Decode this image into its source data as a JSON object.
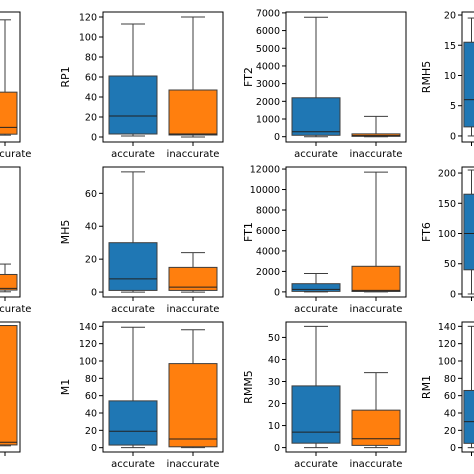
{
  "colors": {
    "accurate": "#1f77b4",
    "inaccurate": "#ff7f0e",
    "axis": "#000000",
    "median": "#222222"
  },
  "chart_data": [
    {
      "type": "box",
      "ylabel": "",
      "ylim": [
        -5,
        128
      ],
      "yticks": [],
      "categories": [
        "",
        "inaccurate"
      ],
      "boxes": [
        null,
        {
          "q1": 3,
          "median": 10,
          "q3": 46,
          "whisker_low": 2,
          "whisker_high": 120
        }
      ]
    },
    {
      "type": "box",
      "ylabel": "RP1",
      "ylim": [
        -5,
        125
      ],
      "yticks": [
        0,
        20,
        40,
        60,
        80,
        100,
        120
      ],
      "categories": [
        "accurate",
        "inaccurate"
      ],
      "boxes": [
        {
          "q1": 3,
          "median": 21,
          "q3": 61,
          "whisker_low": 1,
          "whisker_high": 113
        },
        {
          "q1": 2,
          "median": 3,
          "q3": 47,
          "whisker_low": 0,
          "whisker_high": 120
        }
      ]
    },
    {
      "type": "box",
      "ylabel": "FT2",
      "ylim": [
        -300,
        7050
      ],
      "yticks": [
        0,
        1000,
        2000,
        3000,
        4000,
        5000,
        6000,
        7000
      ],
      "categories": [
        "accurate",
        "inaccurate"
      ],
      "boxes": [
        {
          "q1": 80,
          "median": 280,
          "q3": 2200,
          "whisker_low": 0,
          "whisker_high": 6750
        },
        {
          "q1": 20,
          "median": 60,
          "q3": 160,
          "whisker_low": 0,
          "whisker_high": 1150
        }
      ]
    },
    {
      "type": "box",
      "ylabel": "RMH5",
      "ylim": [
        -1,
        20.5
      ],
      "yticks": [
        0,
        5,
        10,
        15,
        20
      ],
      "categories": [
        "",
        ""
      ],
      "boxes": [
        {
          "q1": 1.5,
          "median": 6,
          "q3": 15.5,
          "whisker_low": 0,
          "whisker_high": 19.5
        },
        null
      ]
    },
    {
      "type": "box",
      "ylabel": "",
      "ylim": [
        -3,
        72
      ],
      "yticks": [],
      "categories": [
        "",
        "inaccurate"
      ],
      "boxes": [
        null,
        {
          "q1": 1,
          "median": 2,
          "q3": 10,
          "whisker_low": 0,
          "whisker_high": 16
        }
      ]
    },
    {
      "type": "box",
      "ylabel": "MH5",
      "ylim": [
        -3,
        76
      ],
      "yticks": [
        0,
        20,
        40,
        60
      ],
      "categories": [
        "accurate",
        "inaccurate"
      ],
      "boxes": [
        {
          "q1": 1,
          "median": 8,
          "q3": 30,
          "whisker_low": 0,
          "whisker_high": 73
        },
        {
          "q1": 1,
          "median": 3,
          "q3": 15,
          "whisker_low": 0,
          "whisker_high": 24
        }
      ]
    },
    {
      "type": "box",
      "ylabel": "FT1",
      "ylim": [
        -500,
        12200
      ],
      "yticks": [
        0,
        2000,
        4000,
        6000,
        8000,
        10000,
        12000
      ],
      "categories": [
        "accurate",
        "inaccurate"
      ],
      "boxes": [
        {
          "q1": 50,
          "median": 250,
          "q3": 800,
          "whisker_low": 0,
          "whisker_high": 1800
        },
        {
          "q1": 40,
          "median": 150,
          "q3": 2500,
          "whisker_low": 0,
          "whisker_high": 11700
        }
      ]
    },
    {
      "type": "box",
      "ylabel": "FT6",
      "ylim": [
        -5,
        210
      ],
      "yticks": [
        0,
        50,
        100,
        150,
        200
      ],
      "categories": [
        "",
        ""
      ],
      "boxes": [
        {
          "q1": 40,
          "median": 100,
          "q3": 165,
          "whisker_low": 0,
          "whisker_high": 205
        },
        null
      ]
    },
    {
      "type": "box",
      "ylabel": "",
      "ylim": [
        -5,
        142
      ],
      "yticks": [],
      "categories": [
        "",
        ""
      ],
      "boxes": [
        null,
        {
          "q1": 3,
          "median": 6,
          "q3": 138,
          "whisker_low": 2,
          "whisker_high": 138
        }
      ]
    },
    {
      "type": "box",
      "ylabel": "M1",
      "ylim": [
        -5,
        145
      ],
      "yticks": [
        0,
        20,
        40,
        60,
        80,
        100,
        120,
        140
      ],
      "categories": [
        "accurate",
        "inaccurate"
      ],
      "boxes": [
        {
          "q1": 3,
          "median": 19,
          "q3": 54,
          "whisker_low": 0,
          "whisker_high": 139
        },
        {
          "q1": 1,
          "median": 10,
          "q3": 97,
          "whisker_low": 0,
          "whisker_high": 136
        }
      ]
    },
    {
      "type": "box",
      "ylabel": "RMM5",
      "ylim": [
        -2,
        57
      ],
      "yticks": [
        0,
        10,
        20,
        30,
        40,
        50
      ],
      "categories": [
        "accurate",
        "inaccurate"
      ],
      "boxes": [
        {
          "q1": 2,
          "median": 7,
          "q3": 28,
          "whisker_low": 0,
          "whisker_high": 55
        },
        {
          "q1": 1,
          "median": 4,
          "q3": 17,
          "whisker_low": 0,
          "whisker_high": 34
        }
      ]
    },
    {
      "type": "box",
      "ylabel": "RM1",
      "ylim": [
        -5,
        145
      ],
      "yticks": [
        0,
        20,
        40,
        60,
        80,
        100,
        120,
        140
      ],
      "categories": [
        "",
        ""
      ],
      "boxes": [
        {
          "q1": 5,
          "median": 30,
          "q3": 66,
          "whisker_low": 0,
          "whisker_high": 140
        },
        null
      ]
    }
  ]
}
